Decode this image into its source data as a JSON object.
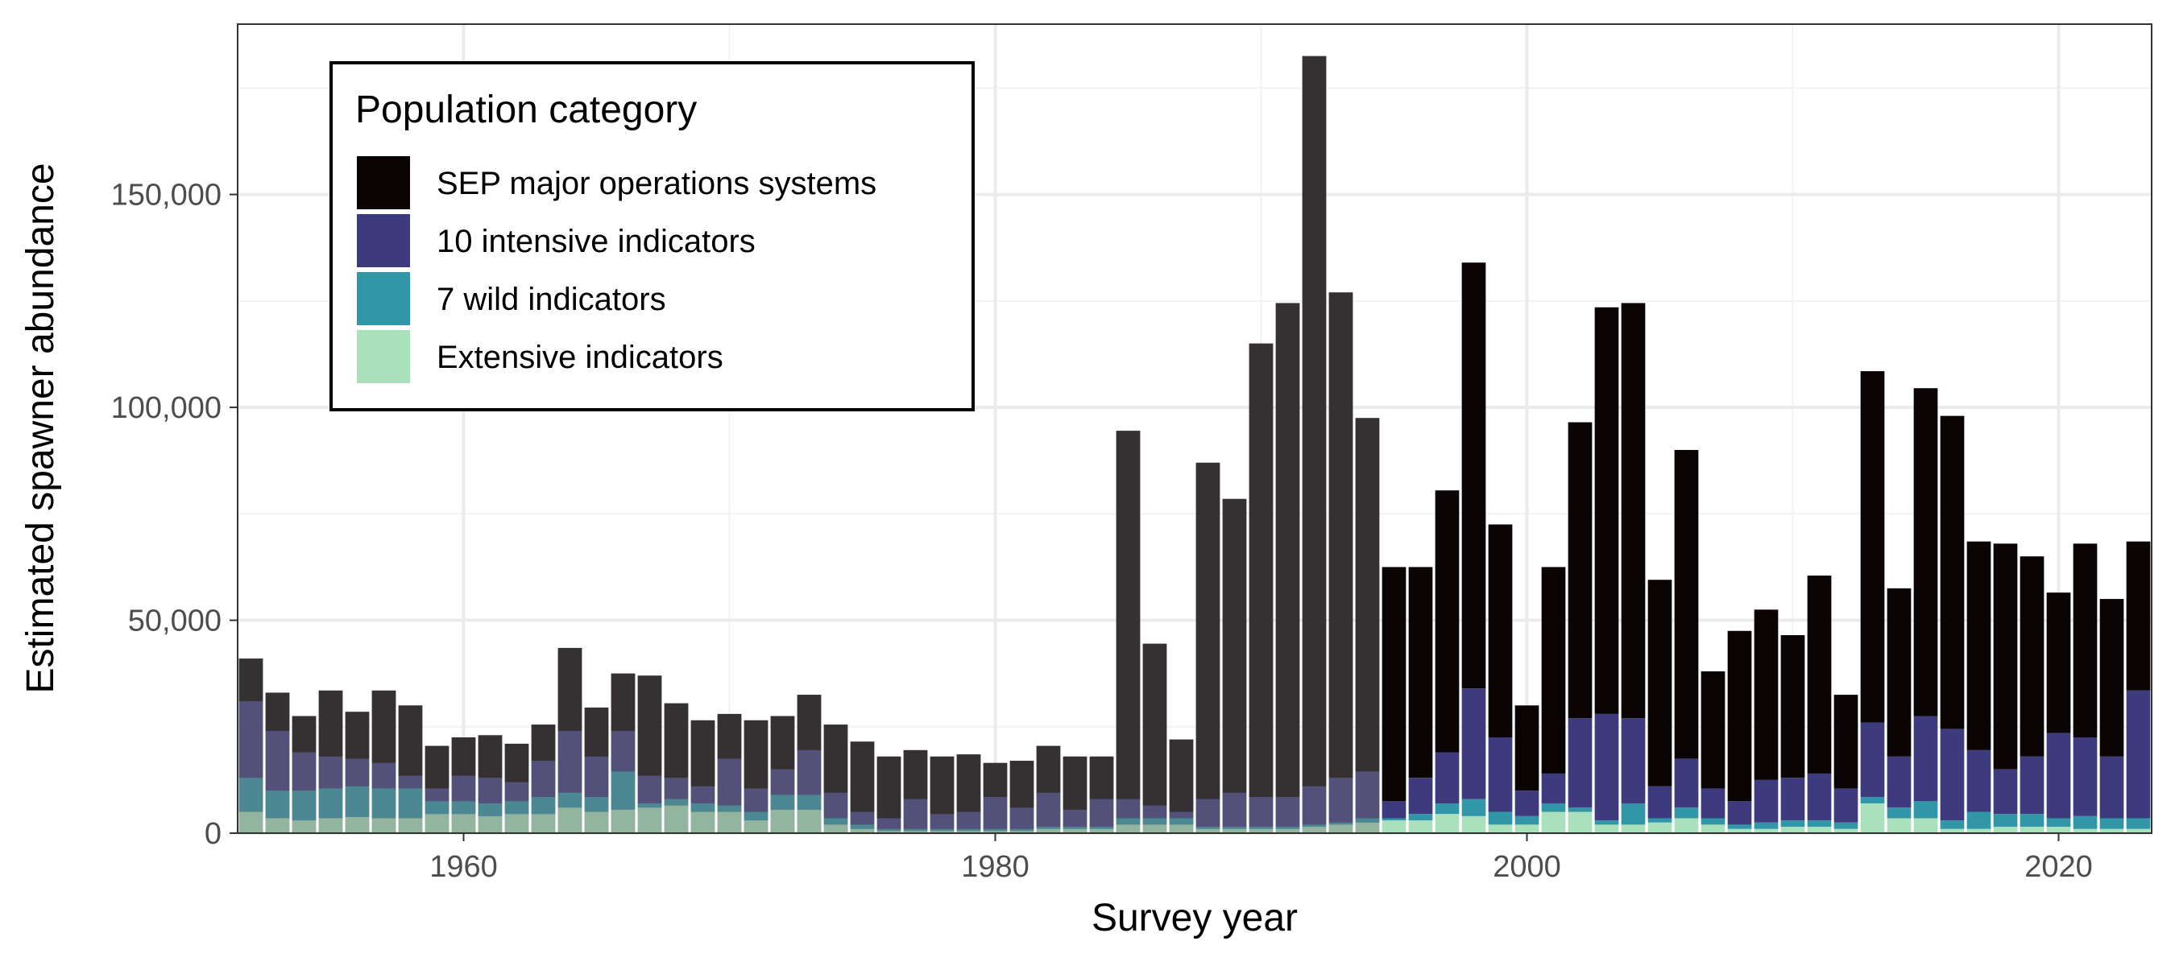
{
  "chart_data": {
    "type": "bar",
    "stacked": true,
    "title": "",
    "xlabel": "Survey year",
    "ylabel": "Estimated spawner abundance",
    "xlim": [
      1951.5,
      2023.5
    ],
    "ylim": [
      0,
      190000
    ],
    "xticks": [
      1960,
      1980,
      2000,
      2020
    ],
    "yticks": [
      0,
      50000,
      100000,
      150000
    ],
    "ytick_labels": [
      "0",
      "50,000",
      "100,000",
      "150,000"
    ],
    "grid": true,
    "legend": {
      "title": "Population category",
      "position": "top-left",
      "entries": [
        {
          "name": "SEP major operations systems",
          "color": "#0b0405"
        },
        {
          "name": "10 intensive indicators",
          "color": "#3e3a7e"
        },
        {
          "name": "7 wild indicators",
          "color": "#3196a8"
        },
        {
          "name": "Extensive indicators",
          "color": "#a8e1bc"
        }
      ]
    },
    "note": "",
    "full_opacity_from_year": 1995,
    "faded_background_before_1995": "#747474",
    "faded_opacity": 0.6,
    "years": [
      1952,
      1953,
      1954,
      1955,
      1956,
      1957,
      1958,
      1959,
      1960,
      1961,
      1962,
      1963,
      1964,
      1965,
      1966,
      1967,
      1968,
      1969,
      1970,
      1971,
      1972,
      1973,
      1974,
      1975,
      1976,
      1977,
      1978,
      1979,
      1980,
      1981,
      1982,
      1983,
      1984,
      1985,
      1986,
      1987,
      1988,
      1989,
      1990,
      1991,
      1992,
      1993,
      1994,
      1995,
      1996,
      1997,
      1998,
      1999,
      2000,
      2001,
      2002,
      2003,
      2004,
      2005,
      2006,
      2007,
      2008,
      2009,
      2010,
      2011,
      2012,
      2013,
      2014,
      2015,
      2016,
      2017,
      2018,
      2019,
      2020,
      2021,
      2022,
      2023
    ],
    "series": [
      {
        "name": "Extensive indicators",
        "values": [
          5000,
          3500,
          3000,
          3500,
          3800,
          3500,
          3500,
          4500,
          4500,
          4000,
          4500,
          4500,
          6000,
          5000,
          5500,
          6000,
          6500,
          5000,
          5000,
          3000,
          5500,
          5500,
          2000,
          1000,
          500,
          500,
          500,
          500,
          500,
          500,
          1000,
          1000,
          1000,
          2000,
          2000,
          2000,
          1000,
          1000,
          1000,
          1000,
          1500,
          2000,
          2500,
          3000,
          3000,
          4500,
          4000,
          2000,
          2000,
          5000,
          5000,
          2000,
          2000,
          2500,
          3500,
          2000,
          1000,
          1000,
          1500,
          1500,
          1000,
          7000,
          3500,
          3500,
          1000,
          1000,
          1500,
          1500,
          1500,
          1000,
          1000,
          1000
        ]
      },
      {
        "name": "7 wild indicators",
        "values": [
          8000,
          6500,
          7000,
          7000,
          7200,
          7000,
          7000,
          3000,
          3000,
          3000,
          3000,
          4000,
          3500,
          3500,
          9000,
          1000,
          1500,
          2000,
          1500,
          2000,
          3500,
          3500,
          1500,
          1000,
          500,
          500,
          500,
          500,
          500,
          500,
          500,
          500,
          500,
          1500,
          1500,
          1500,
          500,
          500,
          500,
          500,
          500,
          500,
          1000,
          500,
          1500,
          2500,
          4000,
          3000,
          2000,
          2000,
          1000,
          1000,
          5000,
          1000,
          2500,
          1500,
          1000,
          1500,
          1500,
          1500,
          1500,
          1500,
          2500,
          4000,
          2000,
          4000,
          3000,
          3000,
          2000,
          3000,
          2500,
          2500
        ]
      },
      {
        "name": "10 intensive indicators",
        "values": [
          18000,
          14000,
          9000,
          7500,
          6500,
          6000,
          3000,
          3000,
          6000,
          6000,
          4500,
          8500,
          14500,
          9500,
          9500,
          6500,
          5000,
          4000,
          11000,
          5500,
          6000,
          10500,
          6000,
          3000,
          2500,
          7000,
          3500,
          4000,
          7500,
          5000,
          8000,
          4000,
          6500,
          4500,
          3000,
          1500,
          6500,
          8000,
          7000,
          7000,
          9000,
          10500,
          11000,
          4000,
          8500,
          12000,
          26000,
          17500,
          6000,
          7000,
          21000,
          25000,
          20000,
          7500,
          11500,
          7000,
          5500,
          10000,
          10000,
          11000,
          8000,
          17500,
          12000,
          20000,
          21500,
          14500,
          10500,
          13500,
          20000,
          18500,
          14500,
          30000
        ]
      },
      {
        "name": "SEP major operations systems",
        "values": [
          10000,
          9000,
          8500,
          15500,
          11000,
          17000,
          16500,
          10000,
          9000,
          10000,
          9000,
          8500,
          19500,
          11500,
          13500,
          23500,
          17500,
          15500,
          10500,
          16000,
          12500,
          13000,
          16000,
          16500,
          14500,
          11500,
          13500,
          13500,
          8000,
          11000,
          11000,
          12500,
          10000,
          86500,
          38000,
          17000,
          79000,
          69000,
          106500,
          116000,
          171500,
          114000,
          83000,
          55000,
          49500,
          61500,
          100000,
          50000,
          20000,
          48500,
          69500,
          95500,
          97500,
          48500,
          72500,
          27500,
          40000,
          40000,
          33500,
          46500,
          22000,
          82500,
          39500,
          77000,
          73500,
          49000,
          53000,
          47000,
          33000,
          45500,
          37000,
          35000
        ]
      }
    ]
  }
}
